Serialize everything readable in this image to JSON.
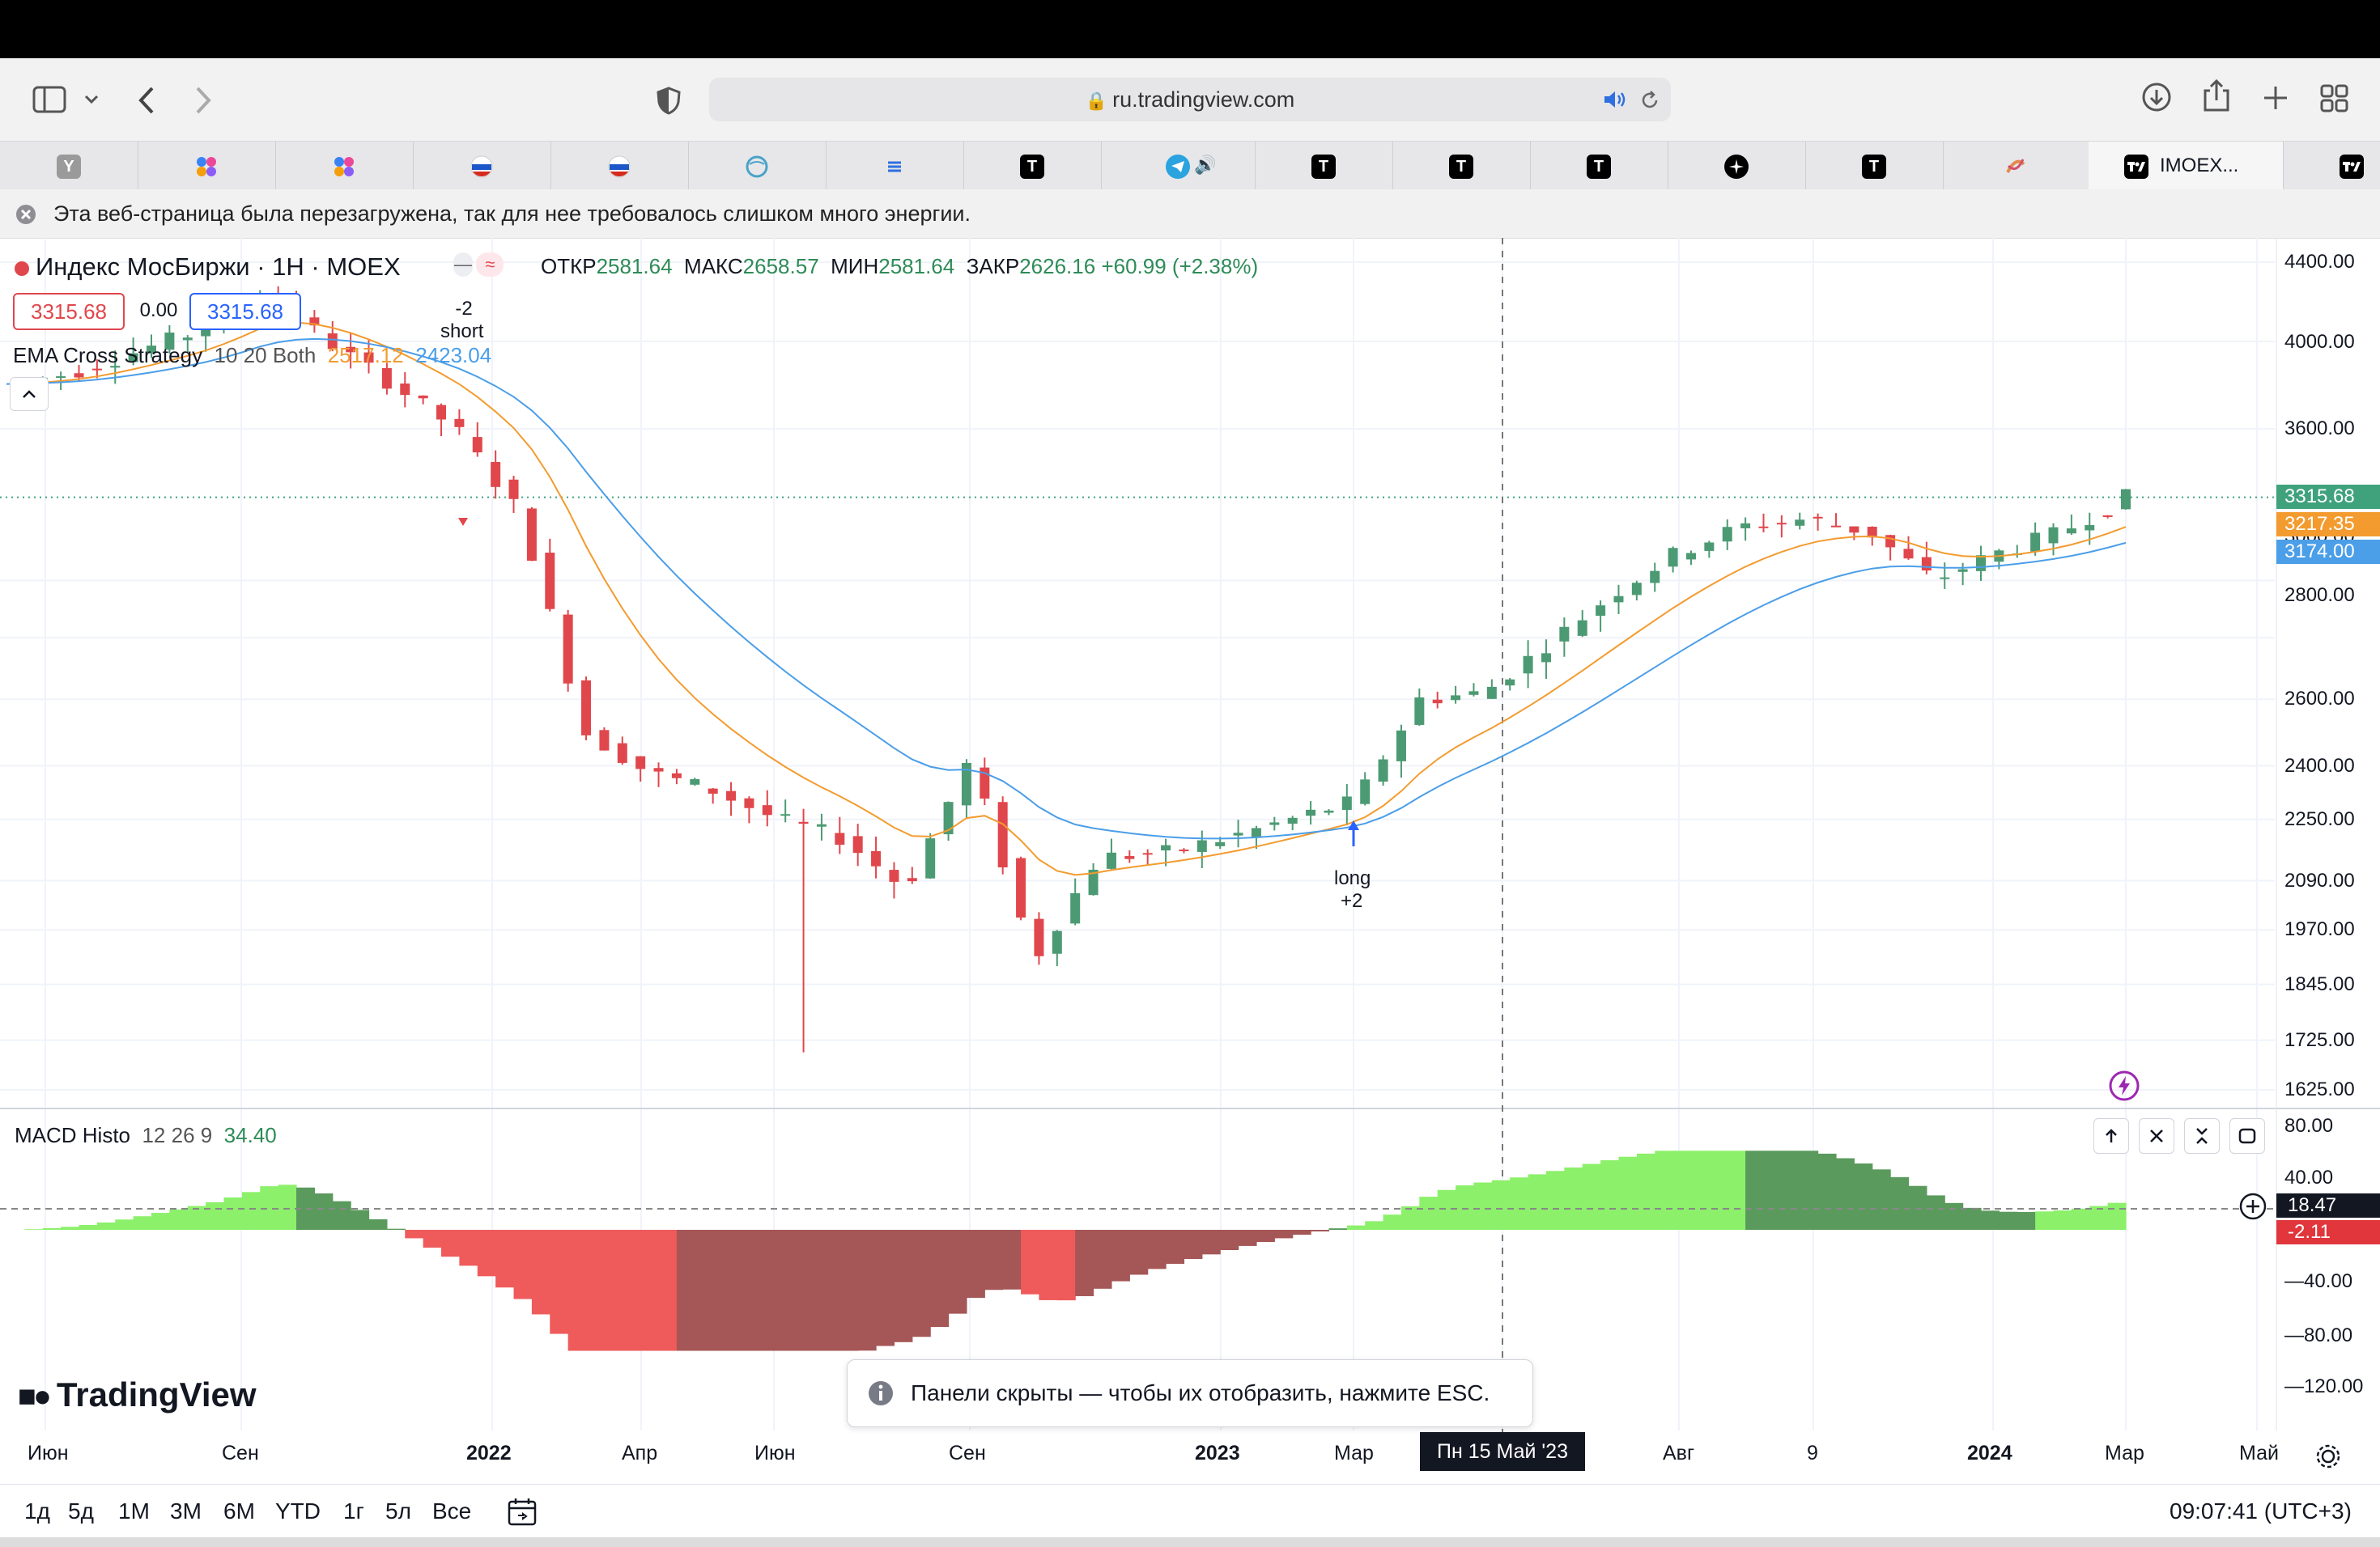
{
  "browser": {
    "url": "ru.tradingview.com",
    "tabs": [
      {
        "icon": "yandex-icon",
        "label": "Y"
      },
      {
        "icon": "colorful-dots-icon",
        "label": ""
      },
      {
        "icon": "colorful-dots-icon",
        "label": ""
      },
      {
        "icon": "russia-flag-icon",
        "label": ""
      },
      {
        "icon": "russia-flag-icon",
        "label": ""
      },
      {
        "icon": "globe-icon",
        "label": ""
      },
      {
        "icon": "stack-icon",
        "label": ""
      },
      {
        "icon": "t-icon",
        "label": "T"
      },
      {
        "icon": "telegram-icon",
        "label": ""
      },
      {
        "icon": "t-icon",
        "label": "T"
      },
      {
        "icon": "t-icon",
        "label": "T"
      },
      {
        "icon": "t-icon",
        "label": "T"
      },
      {
        "icon": "compass-icon",
        "label": ""
      },
      {
        "icon": "t-icon",
        "label": "T"
      },
      {
        "icon": "swirl-icon",
        "label": ""
      },
      {
        "icon": "tradingview-icon",
        "label": "IMOEX..."
      },
      {
        "icon": "tradingview-icon",
        "label": ""
      }
    ],
    "notice": "Эта веб-страница была перезагружена, так для нее требовалось слишком много энергии."
  },
  "chart": {
    "symbol_title": "Индекс МосБиржи · 1Н · MOEX",
    "ohlc": {
      "open_label": "ОТКР",
      "open": "2581.64",
      "high_label": "МАКС",
      "high": "2658.57",
      "low_label": "МИН",
      "low": "2581.64",
      "close_label": "ЗАКР",
      "close": "2626.16",
      "change": "+60.99 (+2.38%)"
    },
    "sell_price": "3315.68",
    "spread": "0.00",
    "buy_price": "3315.68",
    "strategy": {
      "name": "EMA Cross Strategy",
      "params": "10 20 Both",
      "ema_fast": "2517.12",
      "ema_slow": "2423.04"
    },
    "annotations": {
      "short_qty": "-2",
      "short_label": "short",
      "long_label": "long",
      "long_qty": "+2"
    },
    "price_axis": [
      "4400.00",
      "4000.00",
      "3600.00",
      "3000.00",
      "2800.00",
      "2600.00",
      "2400.00",
      "2250.00",
      "2090.00",
      "1970.00",
      "1845.00",
      "1725.00",
      "1625.00"
    ],
    "price_tags": {
      "last": "3315.68",
      "ema_fast": "3217.35",
      "ema_slow": "3174.00"
    },
    "macd": {
      "title": "MACD Histo",
      "params": "12 26 9",
      "value": "34.40",
      "axis": [
        "80.00",
        "40.00",
        "—40.00",
        "—80.00",
        "—120.00"
      ],
      "tag_cursor": "18.47",
      "tag_last": "-2.11"
    },
    "time_axis": [
      "Июн",
      "Сен",
      "2022",
      "Апр",
      "Июн",
      "Сен",
      "2023",
      "Мар",
      "Авг",
      "9",
      "2024",
      "Мар",
      "Май"
    ],
    "crosshair_date": "Пн 15 Май '23",
    "toast": "Панели скрыты — чтобы их отобразить, нажмите ESC.",
    "logo": "TradingView",
    "timeframes": [
      "1д",
      "5д",
      "1М",
      "3М",
      "6М",
      "YTD",
      "1г",
      "5л",
      "Все"
    ],
    "clock": "09:07:41 (UTC+3)",
    "colors": {
      "up": "#4c9a73",
      "down": "#e0474c",
      "ema_fast": "#f39b2f",
      "ema_slow": "#4b9ee8",
      "hist_pos_light": "#8cf06a",
      "hist_pos_dark": "#5a9a5c",
      "hist_neg_light": "#ef5a5a",
      "hist_neg_dark": "#a55656"
    }
  },
  "chart_data": {
    "type": "candlestick",
    "title": "Индекс МосБиржи · 1Н · MOEX",
    "scale": "log",
    "ylim": [
      1625,
      4400
    ],
    "x": [
      "2021-06",
      "2021-07",
      "2021-08",
      "2021-09",
      "2021-10",
      "2021-11",
      "2021-12",
      "2022-01",
      "2022-02",
      "2022-03",
      "2022-04",
      "2022-05",
      "2022-06",
      "2022-07",
      "2022-08",
      "2022-09",
      "2022-10",
      "2022-11",
      "2022-12",
      "2023-01",
      "2023-02",
      "2023-03",
      "2023-04",
      "2023-05",
      "2023-06",
      "2023-07",
      "2023-08",
      "2023-09",
      "2023-10",
      "2023-11",
      "2023-12",
      "2024-01",
      "2024-02",
      "2024-03"
    ],
    "close": [
      3800,
      3850,
      3950,
      4050,
      4250,
      4000,
      3800,
      3600,
      3250,
      2500,
      2380,
      2330,
      2250,
      2200,
      2070,
      2420,
      1900,
      2150,
      2160,
      2200,
      2250,
      2300,
      2600,
      2620,
      2780,
      2950,
      3100,
      3200,
      3230,
      3180,
      3000,
      3100,
      3180,
      3315
    ],
    "ema_fast_last": 3217.35,
    "ema_slow_last": 3174.0,
    "macd_histogram": {
      "params": "12 26 9",
      "last": -2.11,
      "range": [
        -130,
        85
      ]
    }
  }
}
